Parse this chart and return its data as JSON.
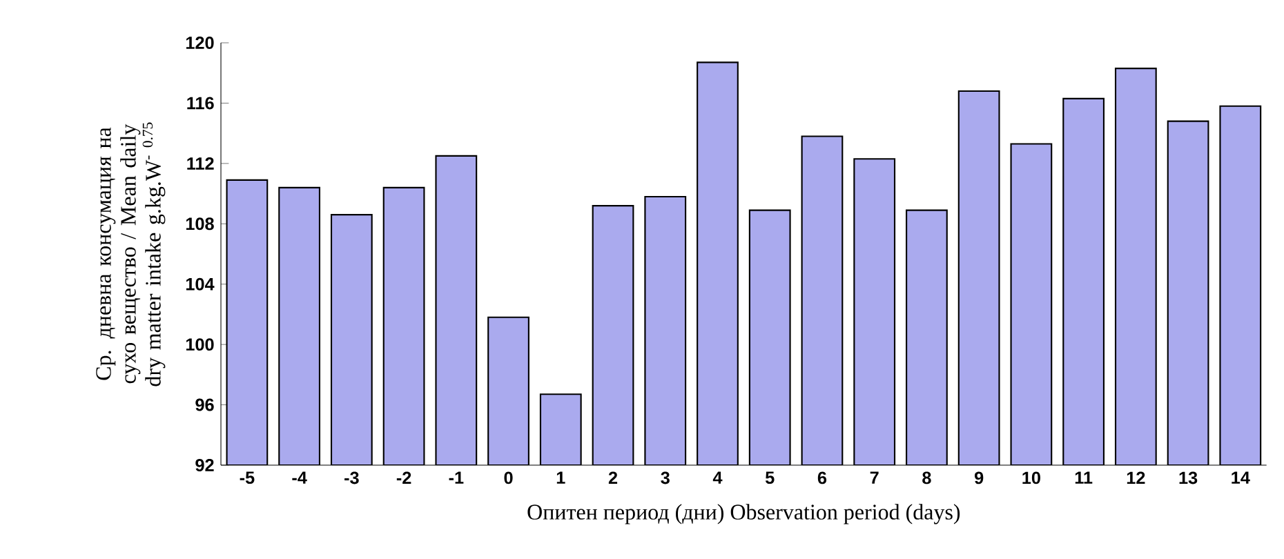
{
  "chart_data": {
    "type": "bar",
    "xlabel": "Опитен период (дни) Observation period (days)",
    "ylabel": "Ср. дневна консумация на сухо вещество / Mean daily dry matter intake  g.kg.W$^{- 0.75}$",
    "categories": [
      "-5",
      "-4",
      "-3",
      "-2",
      "-1",
      "0",
      "1",
      "2",
      "3",
      "4",
      "5",
      "6",
      "7",
      "8",
      "9",
      "10",
      "11",
      "12",
      "13",
      "14"
    ],
    "values": [
      110.9,
      110.4,
      108.6,
      110.4,
      112.5,
      101.8,
      96.7,
      109.2,
      109.8,
      118.7,
      108.9,
      113.8,
      112.3,
      108.9,
      116.8,
      113.3,
      116.3,
      118.3,
      114.8,
      115.8
    ],
    "color": "#aaaaee",
    "ylim": [
      92,
      120
    ],
    "yticks": [
      92,
      96,
      100,
      104,
      108,
      112,
      116,
      120
    ],
    "grid": false
  }
}
